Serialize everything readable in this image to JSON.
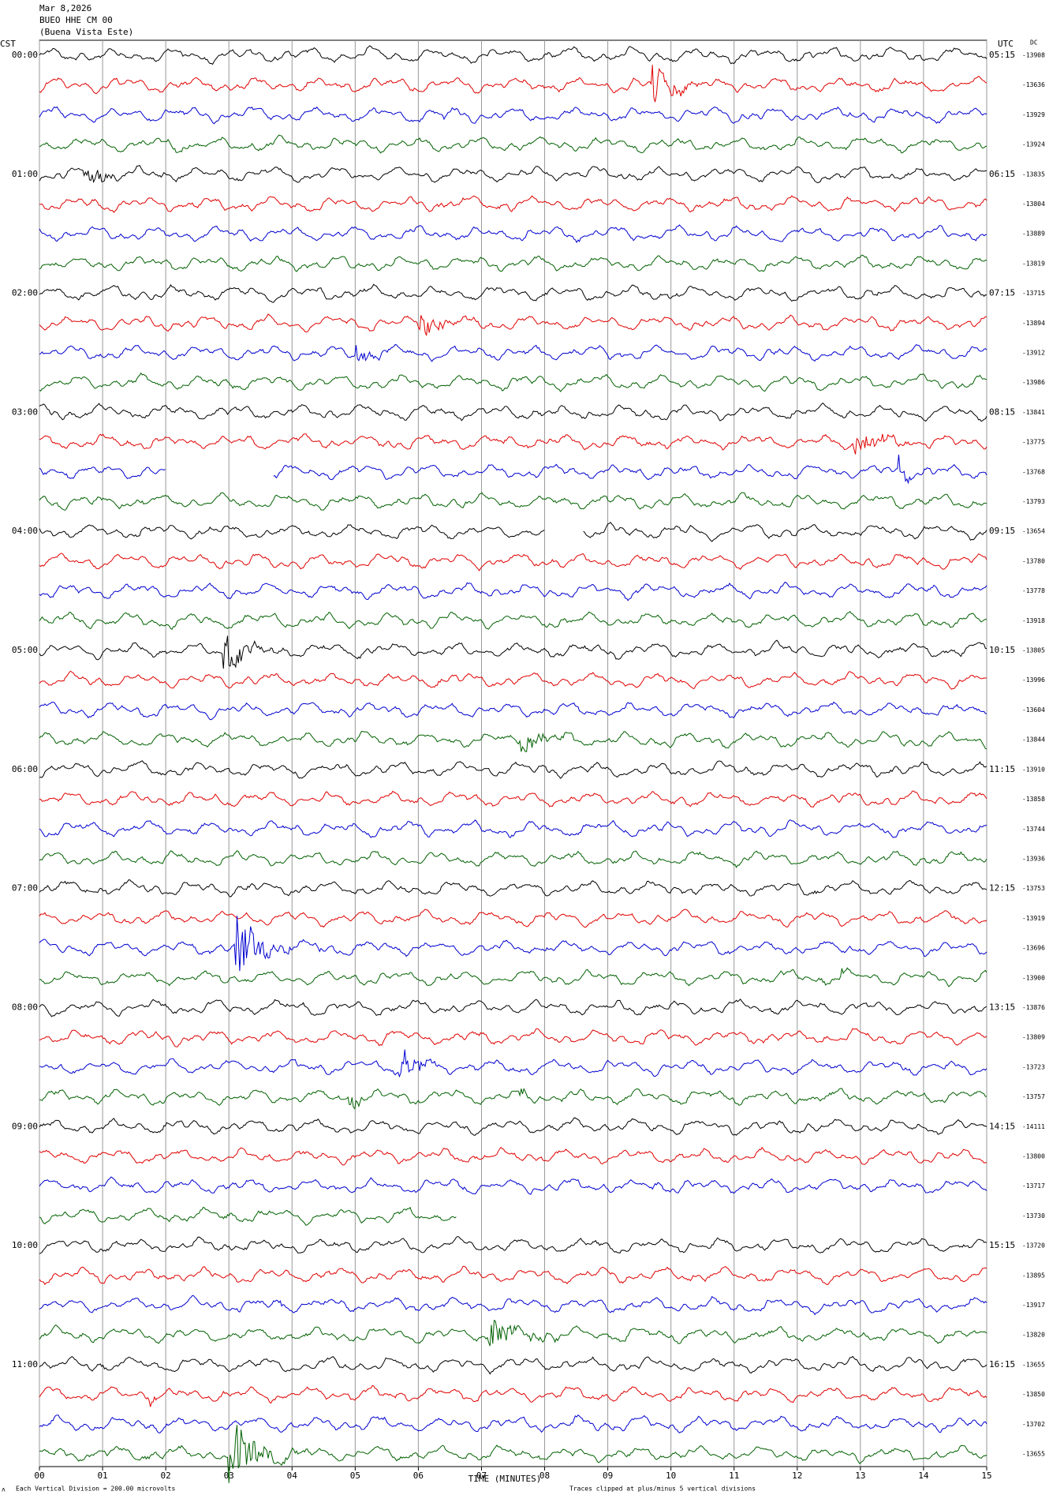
{
  "header": {
    "date": "Mar 8,2026",
    "station": "BUEO HHE CM 00",
    "location": "(Buena Vista Este)"
  },
  "left_axis": {
    "label": "CST",
    "times": [
      "00:00",
      "01:00",
      "02:00",
      "03:00",
      "04:00",
      "05:00",
      "06:00",
      "07:00",
      "08:00",
      "09:00",
      "10:00",
      "11:00"
    ]
  },
  "right_axis": {
    "label": "UTC",
    "times": [
      "05:15",
      "06:15",
      "07:15",
      "08:15",
      "09:15",
      "10:15",
      "11:15",
      "12:15",
      "13:15",
      "14:15",
      "15:15",
      "16:15"
    ]
  },
  "dc_label": "DC",
  "dc_values": [
    -13908,
    -13636,
    -13929,
    -13924,
    -13835,
    -13804,
    -13889,
    -13819,
    -13715,
    -13894,
    -13912,
    -13986,
    -13841,
    -13775,
    -13768,
    -13793,
    -13654,
    -13780,
    -13778,
    -13918,
    -13805,
    -13996,
    -13604,
    -13844,
    -13910,
    -13858,
    -13744,
    -13936,
    -13753,
    -13919,
    -13696,
    -13900,
    -13876,
    -13809,
    -13723,
    -13757,
    -14111,
    -13800,
    -13717,
    -13730,
    -13720,
    -13895,
    -13917,
    -13820,
    -13655,
    -13850,
    -13702,
    -13655
  ],
  "x_axis": {
    "ticks": [
      "00",
      "01",
      "02",
      "03",
      "04",
      "05",
      "06",
      "07",
      "08",
      "09",
      "10",
      "11",
      "12",
      "13",
      "14",
      "15"
    ],
    "label": "TIME (MINUTES)"
  },
  "footer": {
    "scale_note": "Each Vertical Division =  200.00 microvolts",
    "clip_note": "Traces clipped at plus/minus 5 vertical divisions"
  }
}
